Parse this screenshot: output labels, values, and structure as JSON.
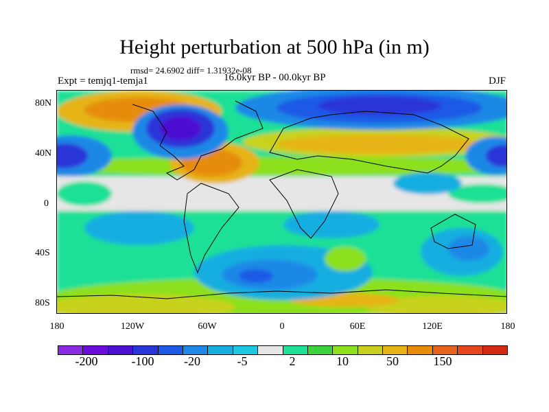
{
  "title": "Height perturbation at 500 hPa (in m)",
  "stats": "rmsd= 24.6902 diff= 1.31932e-08",
  "period": "16.0kyr BP - 00.0kyr BP",
  "expt": "Expt = temjq1-temja1",
  "season": "DJF",
  "lat_labels": [
    "80N",
    "40N",
    "0",
    "40S",
    "80S"
  ],
  "lon_labels": [
    "180",
    "120W",
    "60W",
    "0",
    "60E",
    "120E",
    "180"
  ],
  "colorbar": {
    "colors": [
      "#8a2be2",
      "#6a0ddd",
      "#4b0fd2",
      "#2a35d8",
      "#1e5ae6",
      "#1e88e6",
      "#19aee0",
      "#1ec8e0",
      "#e6e6e6",
      "#1ee096",
      "#3cd23c",
      "#8ce01e",
      "#c8d21e",
      "#e6b414",
      "#e68c0a",
      "#e6641e",
      "#e6461e",
      "#d22814"
    ],
    "labels": [
      "-200",
      "-100",
      "-20",
      "-5",
      "2",
      "10",
      "50",
      "150"
    ]
  }
}
